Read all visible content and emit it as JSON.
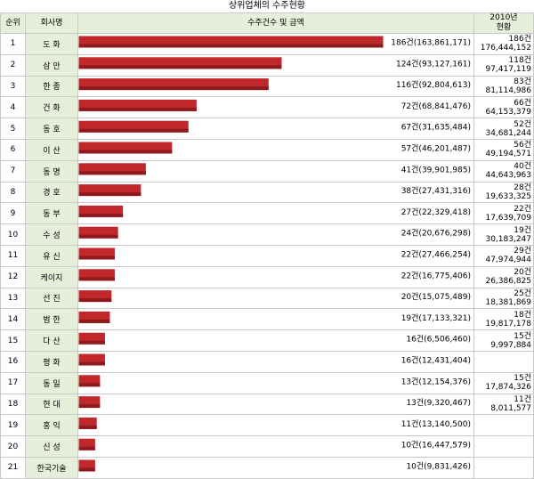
{
  "title": "상위업체의 수주현황",
  "headers": {
    "rank": "순위",
    "company": "회사명",
    "orders": "수주건수 및 금액",
    "year2010": "2010년\n현황"
  },
  "colors": {
    "bar": "#c0282c",
    "header_bg": "#e6efd9",
    "grid": "#c8c8c8"
  },
  "chart_data": {
    "type": "bar",
    "orientation": "horizontal",
    "title": "상위업체의 수주현황",
    "categories": [
      "도 화",
      "삼 안",
      "한 종",
      "건 화",
      "동 호",
      "이 산",
      "동 명",
      "경 호",
      "동 부",
      "수 성",
      "유 신",
      "케이지",
      "선 진",
      "범 한",
      "다 산",
      "평 화",
      "동 일",
      "현 대",
      "홍 익",
      "신 성",
      "한국기술"
    ],
    "ranks": [
      "1",
      "2",
      "3",
      "4",
      "5",
      "6",
      "7",
      "8",
      "9",
      "10",
      "11",
      "12",
      "13",
      "14",
      "15",
      "16",
      "17",
      "18",
      "19",
      "20",
      "21"
    ],
    "values": [
      163861171,
      93127161,
      92804613,
      68841476,
      31635484,
      46201487,
      39901985,
      27431316,
      22329418,
      20676298,
      27466254,
      16775406,
      15075489,
      17133321,
      6506460,
      12431404,
      12154376,
      9320467,
      13140500,
      16447579,
      9831426
    ],
    "value_labels": [
      "186건(163,861,171)",
      "124건(93,127,161)",
      "116건(92,804,613)",
      "72건(68,841,476)",
      "67건(31,635,484)",
      "57건(46,201,487)",
      "41건(39,901,985)",
      "38건(27,431,316)",
      "27건(22,329,418)",
      "24건(20,676,298)",
      "22건(27,466,254)",
      "22건(16,775,406)",
      "20건(15,075,489)",
      "19건(17,133,321)",
      "16건(6,506,460)",
      "16건(12,431,404)",
      "13건(12,154,376)",
      "13건(9,320,467)",
      "11건(13,140,500)",
      "10건(16,447,579)",
      "10건(9,831,426)"
    ],
    "bar_lengths": [
      186,
      124,
      116,
      72,
      67,
      57,
      41,
      38,
      27,
      24,
      22,
      22,
      20,
      19,
      16,
      16,
      13,
      13,
      11,
      10,
      10
    ],
    "y2010_counts": [
      "186건",
      "118건",
      "83건",
      "66건",
      "52건",
      "56건",
      "40건",
      "28건",
      "22건",
      "19건",
      "29건",
      "20건",
      "25건",
      "18건",
      "15건",
      "",
      "15건",
      "11건",
      "",
      "",
      ""
    ],
    "y2010_amounts": [
      "176,444,152",
      "97,417,119",
      "81,114,986",
      "64,153,379",
      "34,681,244",
      "49,194,571",
      "44,643,963",
      "19,633,325",
      "17,639,709",
      "30,183,247",
      "47,974,944",
      "26,386,825",
      "18,381,869",
      "19,817,178",
      "9,997,884",
      "",
      "17,874,326",
      "8,011,577",
      "",
      "",
      ""
    ]
  }
}
